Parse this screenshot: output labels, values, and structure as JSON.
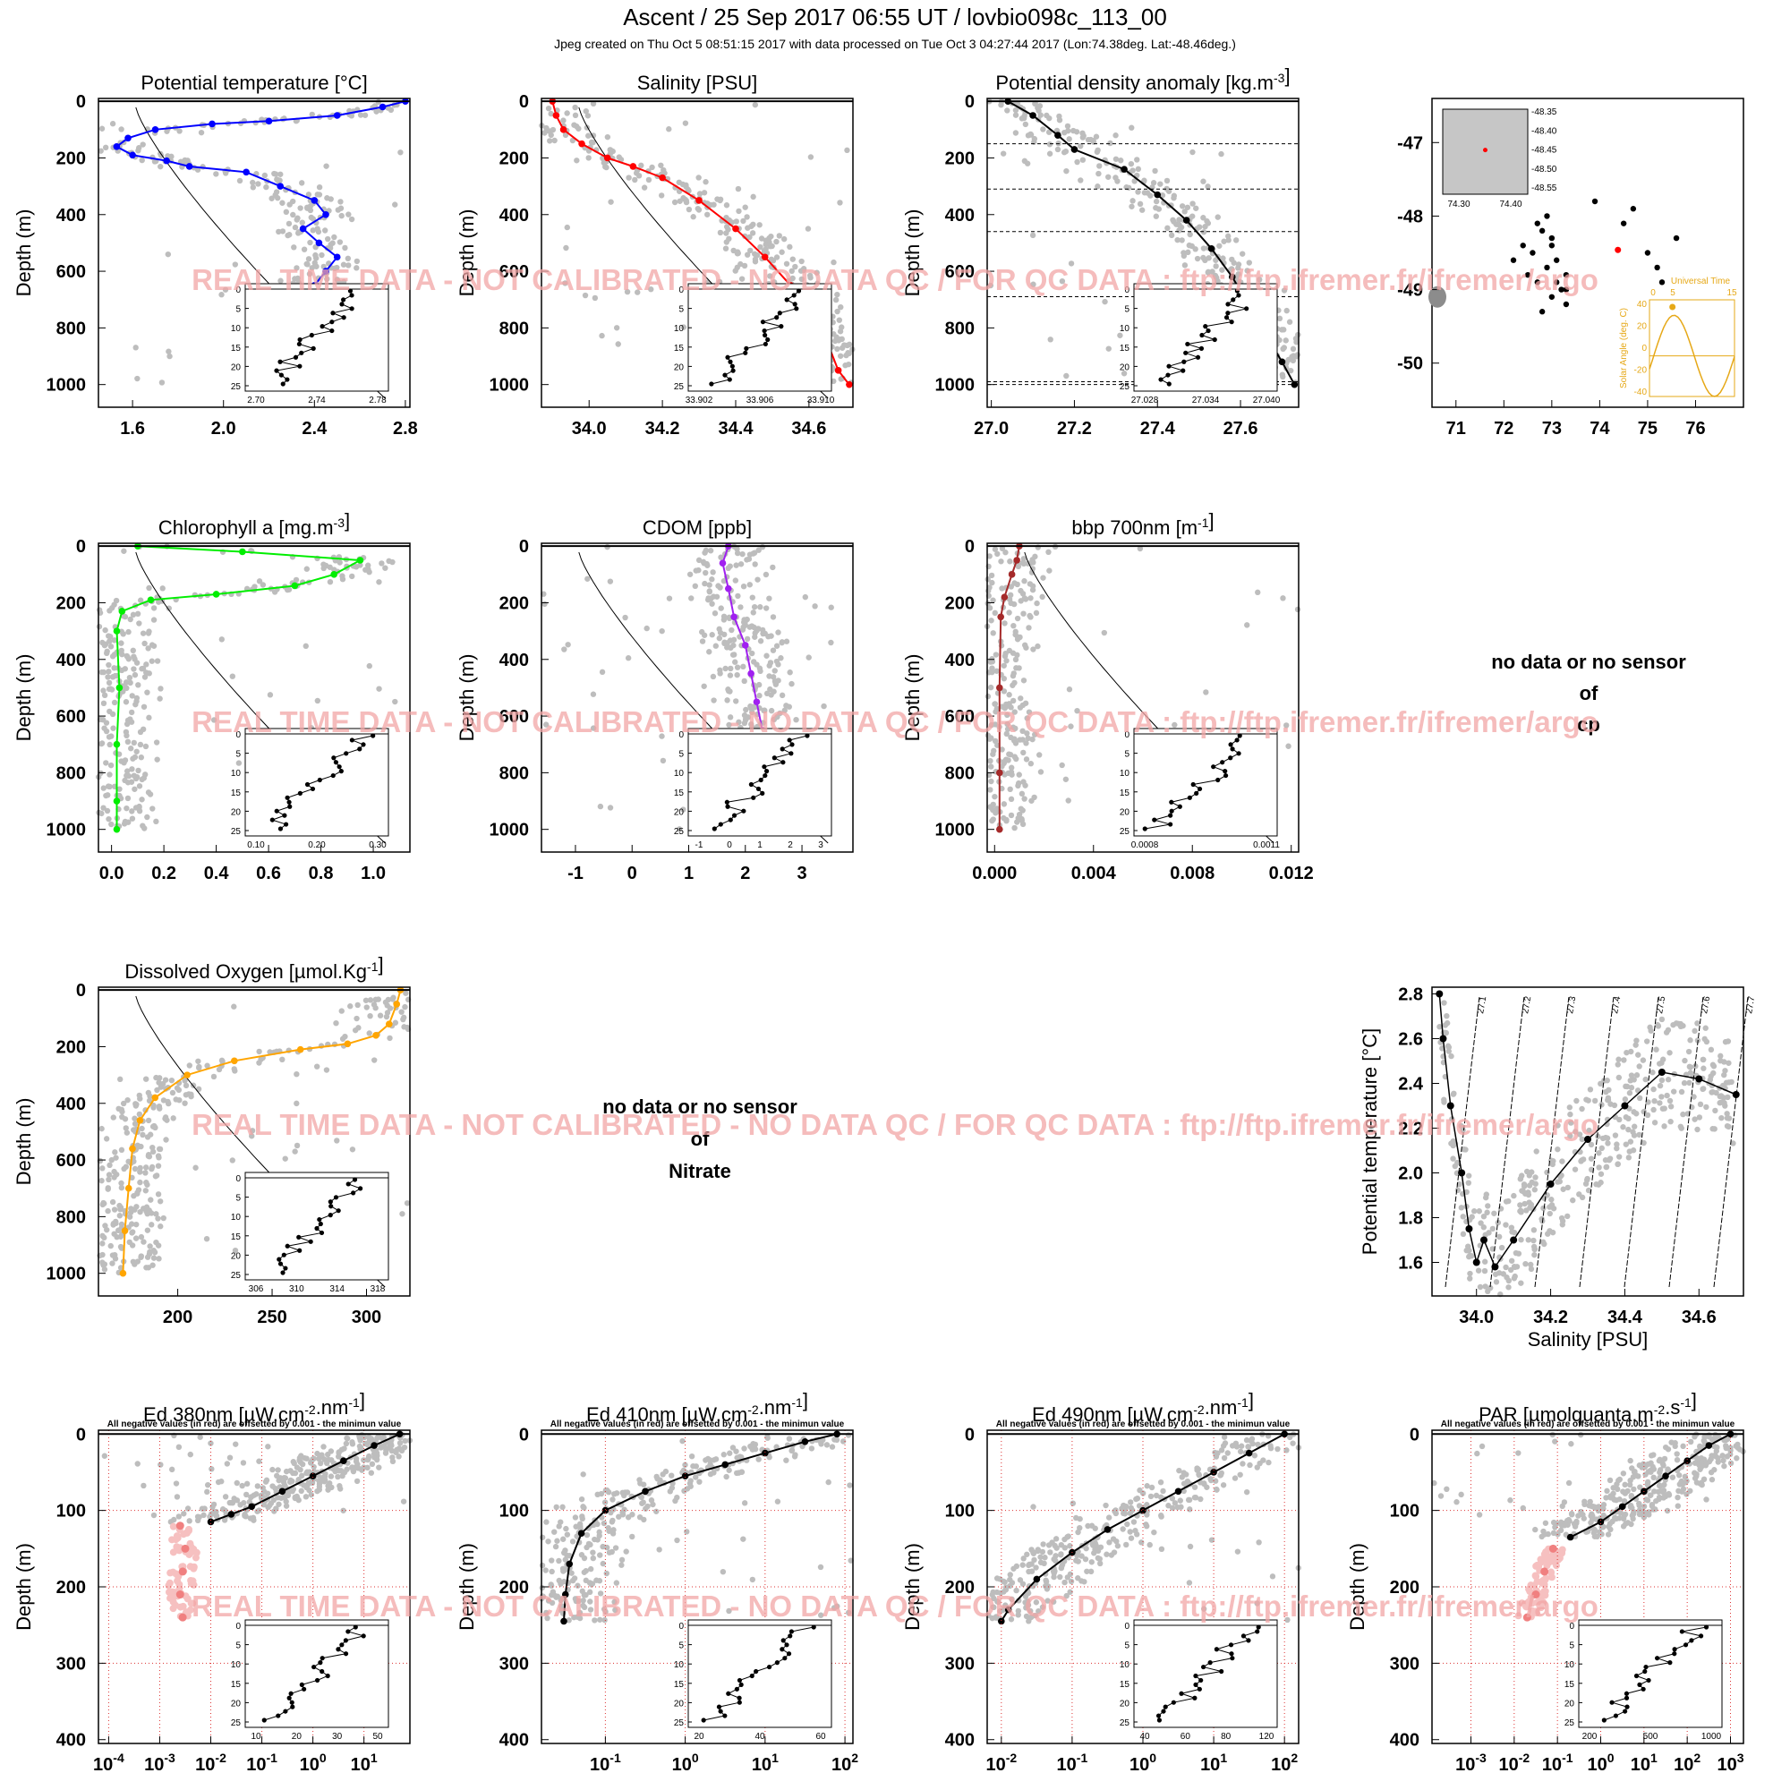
{
  "header": {
    "title": "Ascent / 25 Sep 2017 06:55 UT /  lovbio098c_113_00",
    "subtitle": "Jpeg created on Thu Oct  5 08:51:15 2017 with data processed on Tue Oct  3 04:27:44 2017 (Lon:74.38deg. Lat:-48.46deg.)"
  },
  "watermark": "REAL TIME DATA - NOT CALIBRATED - NO DATA QC  /  FOR QC DATA : ftp://ftp.ifremer.fr/ifremer/argo",
  "neg_note": "All negative values (in red) are offsetted by 0.001 - the minimun value",
  "colors": {
    "history": "#bdbdbd",
    "temp": "#0000ff",
    "sal": "#ff0000",
    "dens": "#000000",
    "chl": "#00ee00",
    "cdom": "#a020f0",
    "bbp": "#a52a2a",
    "oxy": "#ffa500",
    "neg": "#f08080",
    "neg_light": "#f6c0c0",
    "sun": "#e6a817",
    "watermark": "#f2a6a6"
  },
  "nodata": [
    {
      "line1": "no data or no sensor",
      "line2": "of",
      "line3": "cp"
    },
    {
      "line1": "no data or no sensor",
      "line2": "of",
      "line3": "Nitrate"
    }
  ],
  "chart_data": [
    {
      "type": "scatter",
      "id": "temp",
      "title": "Potential temperature [°C]",
      "ylabel": "Depth (m)",
      "xlim": [
        1.45,
        2.82
      ],
      "ylim": [
        1080,
        -10
      ],
      "xticks": [
        "1.6",
        "2.0",
        "2.4",
        "2.8"
      ],
      "yticks": [
        "0",
        "200",
        "400",
        "600",
        "800",
        "1000"
      ],
      "profile": {
        "x": [
          2.8,
          2.7,
          2.5,
          2.2,
          1.95,
          1.7,
          1.58,
          1.53,
          1.6,
          1.75,
          1.85,
          2.1,
          2.25,
          2.4,
          2.45,
          2.35,
          2.42,
          2.5,
          2.45,
          2.4,
          2.32,
          2.3,
          2.3,
          2.28,
          2.28
        ],
        "depth": [
          0,
          20,
          50,
          70,
          80,
          100,
          130,
          160,
          190,
          210,
          230,
          250,
          300,
          350,
          400,
          450,
          500,
          550,
          600,
          650,
          700,
          800,
          900,
          960,
          1000
        ]
      },
      "inset": {
        "xticks": [
          "2.70",
          "2.74",
          "2.78"
        ],
        "yticks": [
          "0",
          "5",
          "10",
          "15",
          "20",
          "25"
        ]
      }
    },
    {
      "type": "scatter",
      "id": "sal",
      "title": "Salinity [PSU]",
      "ylabel": "Depth (m)",
      "xlim": [
        33.87,
        34.72
      ],
      "ylim": [
        1080,
        -10
      ],
      "xticks": [
        "34.0",
        "34.2",
        "34.4",
        "34.6"
      ],
      "yticks": [
        "0",
        "200",
        "400",
        "600",
        "800",
        "1000"
      ],
      "profile": {
        "x": [
          33.9,
          33.91,
          33.93,
          33.98,
          34.05,
          34.12,
          34.2,
          34.3,
          34.4,
          34.48,
          34.55,
          34.6,
          34.65,
          34.68,
          34.71
        ],
        "depth": [
          0,
          50,
          100,
          150,
          200,
          230,
          270,
          350,
          450,
          550,
          650,
          750,
          850,
          950,
          1000
        ]
      },
      "inset": {
        "xticks": [
          "33.902",
          "33.906",
          "33.910"
        ],
        "yticks": [
          "0",
          "5",
          "10",
          "15",
          "20",
          "25"
        ]
      }
    },
    {
      "type": "scatter",
      "id": "dens",
      "title": "Potential density anomaly [kg.m-3]",
      "ylabel": "Depth (m)",
      "xlim": [
        26.99,
        27.74
      ],
      "ylim": [
        1080,
        -10
      ],
      "xticks": [
        "27.0",
        "27.2",
        "27.4",
        "27.6"
      ],
      "yticks": [
        "0",
        "200",
        "400",
        "600",
        "800",
        "1000"
      ],
      "profile": {
        "x": [
          27.04,
          27.1,
          27.16,
          27.2,
          27.32,
          27.4,
          27.47,
          27.53,
          27.58,
          27.62,
          27.66,
          27.7,
          27.73
        ],
        "depth": [
          0,
          50,
          120,
          170,
          240,
          330,
          420,
          520,
          620,
          720,
          820,
          920,
          1000
        ]
      },
      "mld_lines": [
        150,
        310,
        460,
        690,
        990,
        1000
      ],
      "inset": {
        "xticks": [
          "27.028",
          "27.034",
          "27.040"
        ],
        "yticks": [
          "0",
          "5",
          "10",
          "15",
          "20",
          "25"
        ]
      }
    },
    {
      "type": "scatter",
      "id": "map",
      "xlim": [
        70.5,
        77
      ],
      "ylim": [
        -50.6,
        -46.4
      ],
      "xticks": [
        "71",
        "72",
        "73",
        "74",
        "75",
        "76"
      ],
      "yticks": [
        "-47",
        "-48",
        "-49",
        "-50"
      ],
      "track": {
        "lon": [
          72.2,
          72.4,
          72.6,
          72.8,
          73.0,
          73.1,
          72.5,
          72.7,
          72.9,
          73.2,
          73.3,
          73.0,
          72.8,
          73.1,
          73.3,
          73.0,
          72.7,
          72.9,
          73.3,
          73.9,
          74.5,
          75.0,
          75.3,
          74.7,
          75.6,
          75.2
        ],
        "lat": [
          -48.6,
          -48.4,
          -48.5,
          -48.2,
          -48.3,
          -48.6,
          -48.8,
          -48.9,
          -48.7,
          -49.0,
          -49.2,
          -49.1,
          -49.3,
          -48.9,
          -49.0,
          -48.4,
          -48.1,
          -48.0,
          -48.8,
          -47.8,
          -48.1,
          -48.5,
          -48.9,
          -47.9,
          -48.3,
          -48.7
        ]
      },
      "current": {
        "lon": 74.38,
        "lat": -48.46
      },
      "inset_map": {
        "xticks": [
          "74.30",
          "74.40"
        ],
        "yticks": [
          "-48.35",
          "-48.40",
          "-48.45",
          "-48.50",
          "-48.55"
        ]
      },
      "sun": {
        "title": "Universal Time",
        "ylabel": "Solar Angle (deg. C)",
        "xticks": [
          "0",
          "5",
          "15"
        ],
        "yticks": [
          "40",
          "20",
          "0",
          "-20",
          "-40"
        ]
      }
    },
    {
      "type": "scatter",
      "id": "chl",
      "title": "Chlorophyll a [mg.m-3]",
      "ylabel": "Depth (m)",
      "xlim": [
        -0.05,
        1.14
      ],
      "ylim": [
        1080,
        -10
      ],
      "xticks": [
        "0.0",
        "0.2",
        "0.4",
        "0.6",
        "0.8",
        "1.0"
      ],
      "yticks": [
        "0",
        "200",
        "400",
        "600",
        "800",
        "1000"
      ],
      "profile": {
        "x": [
          0.1,
          0.5,
          0.95,
          0.85,
          0.7,
          0.4,
          0.15,
          0.04,
          0.02,
          0.03,
          0.02,
          0.02,
          0.02
        ],
        "depth": [
          0,
          20,
          50,
          100,
          140,
          170,
          190,
          230,
          300,
          500,
          700,
          900,
          1000
        ]
      },
      "inset": {
        "xticks": [
          "0.10",
          "0.20",
          "0.30"
        ],
        "yticks": [
          "0",
          "5",
          "10",
          "15",
          "20",
          "25"
        ]
      }
    },
    {
      "type": "scatter",
      "id": "cdom",
      "title": "CDOM [ppb]",
      "ylabel": "Depth (m)",
      "xlim": [
        -1.6,
        3.9
      ],
      "ylim": [
        1080,
        -10
      ],
      "xticks": [
        "-1",
        "0",
        "1",
        "2",
        "3"
      ],
      "yticks": [
        "0",
        "200",
        "400",
        "600",
        "800",
        "1000"
      ],
      "profile": {
        "x": [
          1.7,
          1.6,
          1.7,
          1.8,
          2.0,
          2.1,
          2.2,
          2.3,
          2.4,
          2.4,
          2.4
        ],
        "depth": [
          0,
          60,
          150,
          250,
          350,
          450,
          550,
          650,
          800,
          900,
          1000
        ]
      },
      "inset": {
        "xticks": [
          "-1",
          "0",
          "1",
          "2",
          "3"
        ],
        "yticks": [
          "0",
          "5",
          "10",
          "15",
          "20",
          "25"
        ]
      }
    },
    {
      "type": "scatter",
      "id": "bbp",
      "title": "bbp 700nm [m-1]",
      "ylabel": "Depth (m)",
      "xlim": [
        -0.0003,
        0.0123
      ],
      "ylim": [
        1080,
        -10
      ],
      "xticks": [
        "0.000",
        "0.004",
        "0.008",
        "0.012"
      ],
      "yticks": [
        "0",
        "200",
        "400",
        "600",
        "800",
        "1000"
      ],
      "profile": {
        "x": [
          0.001,
          0.0009,
          0.0007,
          0.0004,
          0.00025,
          0.0002,
          0.0002,
          0.0002
        ],
        "depth": [
          0,
          50,
          100,
          180,
          250,
          500,
          800,
          1000
        ]
      },
      "inset": {
        "xticks": [
          "0.0008",
          "0.0011"
        ],
        "yticks": [
          "0",
          "5",
          "10",
          "15",
          "20",
          "25"
        ]
      }
    },
    {
      "type": "scatter",
      "id": "oxy",
      "title": "Dissolved Oxygen [µmol.Kg-1]",
      "ylabel": "Depth (m)",
      "xlim": [
        158,
        323
      ],
      "ylim": [
        1080,
        -10
      ],
      "xticks": [
        "200",
        "250",
        "300"
      ],
      "yticks": [
        "0",
        "200",
        "400",
        "600",
        "800",
        "1000"
      ],
      "profile": {
        "x": [
          318,
          316,
          312,
          305,
          290,
          265,
          230,
          205,
          188,
          180,
          176,
          174,
          172,
          171
        ],
        "depth": [
          0,
          50,
          120,
          160,
          190,
          210,
          250,
          300,
          380,
          460,
          560,
          700,
          850,
          1000
        ]
      },
      "inset": {
        "xticks": [
          "306",
          "310",
          "314",
          "318"
        ],
        "yticks": [
          "0",
          "5",
          "10",
          "15",
          "20",
          "25"
        ]
      }
    },
    {
      "type": "scatter",
      "id": "ts",
      "xlabel": "Salinity [PSU]",
      "ylabel": "Potential temperature [°C]",
      "xlim": [
        33.88,
        34.72
      ],
      "ylim": [
        1.45,
        2.83
      ],
      "xticks": [
        "34.0",
        "34.2",
        "34.4",
        "34.6"
      ],
      "yticks": [
        "1.6",
        "1.8",
        "2.0",
        "2.2",
        "2.4",
        "2.6",
        "2.8"
      ],
      "isopycnals": [
        "27.1",
        "27.2",
        "27.3",
        "27.4",
        "27.5",
        "27.6",
        "27.7"
      ],
      "profile": {
        "sal": [
          33.9,
          33.91,
          33.93,
          33.96,
          33.98,
          34.0,
          34.02,
          34.05,
          34.1,
          34.2,
          34.3,
          34.4,
          34.5,
          34.6,
          34.7
        ],
        "temp": [
          2.8,
          2.6,
          2.3,
          2.0,
          1.75,
          1.6,
          1.7,
          1.58,
          1.7,
          1.95,
          2.15,
          2.3,
          2.45,
          2.42,
          2.35
        ]
      }
    },
    {
      "type": "scatter",
      "id": "ed380",
      "title": "Ed 380nm [µW.cm-2.nm-1]",
      "ylabel": "Depth (m)",
      "xscale": "log",
      "xlim": [
        -4.2,
        1.9
      ],
      "ylim": [
        405,
        -5
      ],
      "xticks": [
        "10-4",
        "10-3",
        "10-2",
        "10-1",
        "100",
        "101"
      ],
      "yticks": [
        "0",
        "100",
        "200",
        "300",
        "400"
      ],
      "profile": {
        "logx": [
          1.7,
          1.2,
          0.6,
          0.0,
          -0.6,
          -1.2,
          -1.6,
          -2.0
        ],
        "depth": [
          0,
          15,
          35,
          55,
          75,
          95,
          105,
          115
        ]
      },
      "negative": {
        "logx": [
          -2.6,
          -2.5,
          -2.55,
          -2.6,
          -2.55
        ],
        "depth": [
          120,
          150,
          180,
          210,
          240
        ]
      },
      "inset": {
        "xticks": [
          "10",
          "20",
          "30",
          "50"
        ],
        "yticks": [
          "0",
          "5",
          "10",
          "15",
          "20",
          "25"
        ]
      }
    },
    {
      "type": "scatter",
      "id": "ed410",
      "title": "Ed 410nm [µW.cm-2.nm-1]",
      "ylabel": "Depth (m)",
      "xscale": "log",
      "xlim": [
        -1.8,
        2.1
      ],
      "ylim": [
        405,
        -5
      ],
      "xticks": [
        "10-1",
        "100",
        "101",
        "102"
      ],
      "yticks": [
        "0",
        "100",
        "200",
        "300",
        "400"
      ],
      "profile": {
        "logx": [
          1.9,
          1.5,
          1.0,
          0.5,
          0.0,
          -0.5,
          -1.0,
          -1.3,
          -1.45,
          -1.5,
          -1.52
        ],
        "depth": [
          0,
          10,
          25,
          40,
          55,
          75,
          100,
          130,
          170,
          210,
          245
        ]
      },
      "inset": {
        "xticks": [
          "20",
          "40",
          "60"
        ],
        "yticks": [
          "0",
          "5",
          "10",
          "15",
          "20",
          "25"
        ]
      }
    },
    {
      "type": "scatter",
      "id": "ed490",
      "title": "Ed 490nm [µW.cm-2.nm-1]",
      "ylabel": "Depth (m)",
      "xscale": "log",
      "xlim": [
        -2.2,
        2.2
      ],
      "ylim": [
        405,
        -5
      ],
      "xticks": [
        "10-2",
        "10-1",
        "100",
        "101",
        "102"
      ],
      "yticks": [
        "0",
        "100",
        "200",
        "300",
        "400"
      ],
      "profile": {
        "logx": [
          2.0,
          1.5,
          1.0,
          0.5,
          0.0,
          -0.5,
          -1.0,
          -1.5,
          -1.9,
          -2.0
        ],
        "depth": [
          0,
          25,
          50,
          75,
          100,
          125,
          155,
          190,
          230,
          245
        ]
      },
      "inset": {
        "xticks": [
          "40",
          "60",
          "80",
          "120"
        ],
        "yticks": [
          "0",
          "5",
          "10",
          "15",
          "20",
          "25"
        ]
      }
    },
    {
      "type": "scatter",
      "id": "par",
      "title": "PAR [µmolquanta.m-2.s-1]",
      "ylabel": "Depth (m)",
      "xscale": "log",
      "xlim": [
        -3.9,
        3.3
      ],
      "ylim": [
        405,
        -5
      ],
      "xticks": [
        "10-3",
        "10-2",
        "10-1",
        "100",
        "101",
        "102",
        "103"
      ],
      "yticks": [
        "0",
        "100",
        "200",
        "300",
        "400"
      ],
      "profile": {
        "logx": [
          3.0,
          2.5,
          2.0,
          1.5,
          1.0,
          0.5,
          0.0,
          -0.7
        ],
        "depth": [
          0,
          15,
          35,
          55,
          75,
          95,
          115,
          135
        ]
      },
      "negative": {
        "logx": [
          -1.1,
          -1.3,
          -1.5,
          -1.7
        ],
        "depth": [
          150,
          180,
          210,
          240
        ]
      },
      "inset": {
        "xticks": [
          "200",
          "500",
          "1000"
        ],
        "yticks": [
          "0",
          "5",
          "10",
          "15",
          "20",
          "25"
        ]
      }
    }
  ]
}
